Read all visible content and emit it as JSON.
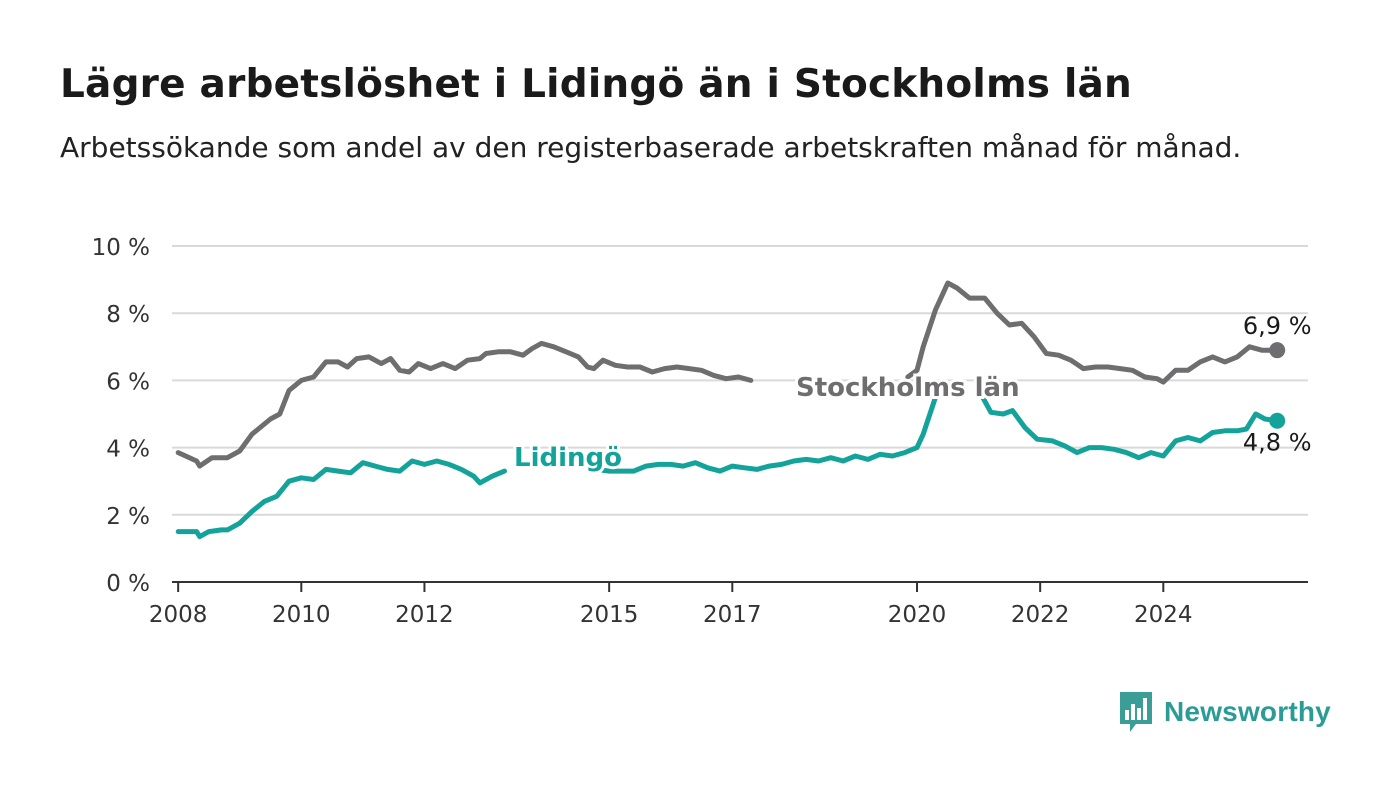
{
  "title": "Lägre arbetslöshet i Lidingö än i Stockholms län",
  "subtitle": "Arbetssökande som andel av den registerbaserade arbetskraften månad för månad.",
  "logo": {
    "text": "Newsworthy",
    "icon": "newsworthy-chart-bubble-icon",
    "color": "#3a9e96"
  },
  "colors": {
    "stockholm": "#6e6e70",
    "lidingo": "#14a39a",
    "grid": "#d9d9d9",
    "axis": "#333333"
  },
  "chart_data": {
    "type": "line",
    "xlabel": "",
    "ylabel": "",
    "ylim": [
      0,
      10
    ],
    "y_ticks": [
      0,
      2,
      4,
      6,
      8,
      10
    ],
    "y_tick_labels": [
      "0 %",
      "2 %",
      "4 %",
      "6 %",
      "8 %",
      "10 %"
    ],
    "x_ticks": [
      2008,
      2010,
      2012,
      2015,
      2017,
      2020,
      2022,
      2024
    ],
    "x_tick_labels": [
      "2008",
      "2010",
      "2012",
      "2015",
      "2017",
      "2020",
      "2022",
      "2024"
    ],
    "grid": "horizontal",
    "legend": "inline labels on lines",
    "series": [
      {
        "name": "Stockholms län",
        "color": "#6e6e70",
        "end_label": "6,9 %",
        "points": [
          [
            2008.0,
            3.85
          ],
          [
            2008.3,
            3.6
          ],
          [
            2008.35,
            3.45
          ],
          [
            2008.55,
            3.7
          ],
          [
            2008.8,
            3.7
          ],
          [
            2009.0,
            3.9
          ],
          [
            2009.2,
            4.4
          ],
          [
            2009.5,
            4.85
          ],
          [
            2009.65,
            5.0
          ],
          [
            2009.8,
            5.7
          ],
          [
            2010.0,
            6.0
          ],
          [
            2010.2,
            6.1
          ],
          [
            2010.4,
            6.55
          ],
          [
            2010.6,
            6.55
          ],
          [
            2010.75,
            6.4
          ],
          [
            2010.9,
            6.65
          ],
          [
            2011.1,
            6.7
          ],
          [
            2011.3,
            6.5
          ],
          [
            2011.45,
            6.65
          ],
          [
            2011.6,
            6.3
          ],
          [
            2011.75,
            6.25
          ],
          [
            2011.9,
            6.5
          ],
          [
            2012.1,
            6.35
          ],
          [
            2012.3,
            6.5
          ],
          [
            2012.5,
            6.35
          ],
          [
            2012.7,
            6.6
          ],
          [
            2012.9,
            6.65
          ],
          [
            2013.0,
            6.8
          ],
          [
            2013.2,
            6.85
          ],
          [
            2013.4,
            6.85
          ],
          [
            2013.6,
            6.75
          ],
          [
            2013.75,
            6.95
          ],
          [
            2013.9,
            7.1
          ],
          [
            2014.1,
            7.0
          ],
          [
            2014.3,
            6.85
          ],
          [
            2014.5,
            6.7
          ],
          [
            2014.65,
            6.4
          ],
          [
            2014.75,
            6.35
          ],
          [
            2014.9,
            6.6
          ],
          [
            2015.1,
            6.45
          ],
          [
            2015.3,
            6.4
          ],
          [
            2015.5,
            6.4
          ],
          [
            2015.7,
            6.25
          ],
          [
            2015.9,
            6.35
          ],
          [
            2016.1,
            6.4
          ],
          [
            2016.3,
            6.35
          ],
          [
            2016.5,
            6.3
          ],
          [
            2016.7,
            6.15
          ],
          [
            2016.9,
            6.05
          ],
          [
            2017.1,
            6.1
          ],
          [
            2017.3,
            6.0
          ]
        ],
        "points_after_label": [
          [
            2019.85,
            6.1
          ],
          [
            2020.0,
            6.3
          ],
          [
            2020.1,
            7.0
          ],
          [
            2020.3,
            8.1
          ],
          [
            2020.5,
            8.9
          ],
          [
            2020.65,
            8.75
          ],
          [
            2020.85,
            8.45
          ],
          [
            2021.1,
            8.45
          ],
          [
            2021.3,
            8.0
          ],
          [
            2021.5,
            7.65
          ],
          [
            2021.7,
            7.7
          ],
          [
            2021.9,
            7.3
          ],
          [
            2022.1,
            6.8
          ],
          [
            2022.3,
            6.75
          ],
          [
            2022.5,
            6.6
          ],
          [
            2022.7,
            6.35
          ],
          [
            2022.9,
            6.4
          ],
          [
            2023.1,
            6.4
          ],
          [
            2023.3,
            6.35
          ],
          [
            2023.5,
            6.3
          ],
          [
            2023.7,
            6.1
          ],
          [
            2023.9,
            6.05
          ],
          [
            2024.0,
            5.95
          ],
          [
            2024.2,
            6.3
          ],
          [
            2024.4,
            6.3
          ],
          [
            2024.6,
            6.55
          ],
          [
            2024.8,
            6.7
          ],
          [
            2025.0,
            6.55
          ],
          [
            2025.2,
            6.7
          ],
          [
            2025.4,
            7.0
          ],
          [
            2025.6,
            6.9
          ],
          [
            2025.85,
            6.9
          ]
        ]
      },
      {
        "name": "Lidingö",
        "color": "#14a39a",
        "end_label": "4,8 %",
        "points": [
          [
            2008.0,
            1.5
          ],
          [
            2008.3,
            1.5
          ],
          [
            2008.35,
            1.35
          ],
          [
            2008.5,
            1.5
          ],
          [
            2008.7,
            1.55
          ],
          [
            2008.8,
            1.55
          ],
          [
            2009.0,
            1.75
          ],
          [
            2009.2,
            2.1
          ],
          [
            2009.4,
            2.4
          ],
          [
            2009.6,
            2.55
          ],
          [
            2009.8,
            3.0
          ],
          [
            2010.0,
            3.1
          ],
          [
            2010.2,
            3.05
          ],
          [
            2010.4,
            3.35
          ],
          [
            2010.6,
            3.3
          ],
          [
            2010.8,
            3.25
          ],
          [
            2011.0,
            3.55
          ],
          [
            2011.2,
            3.45
          ],
          [
            2011.4,
            3.35
          ],
          [
            2011.6,
            3.3
          ],
          [
            2011.8,
            3.6
          ],
          [
            2012.0,
            3.5
          ],
          [
            2012.2,
            3.6
          ],
          [
            2012.4,
            3.5
          ],
          [
            2012.6,
            3.35
          ],
          [
            2012.8,
            3.15
          ],
          [
            2012.9,
            2.95
          ],
          [
            2013.1,
            3.15
          ],
          [
            2013.3,
            3.3
          ]
        ],
        "points_after_label": [
          [
            2014.6,
            3.45
          ],
          [
            2014.8,
            3.35
          ],
          [
            2015.0,
            3.3
          ],
          [
            2015.2,
            3.3
          ],
          [
            2015.4,
            3.3
          ],
          [
            2015.6,
            3.45
          ],
          [
            2015.8,
            3.5
          ],
          [
            2016.0,
            3.5
          ],
          [
            2016.2,
            3.45
          ],
          [
            2016.4,
            3.55
          ],
          [
            2016.6,
            3.4
          ],
          [
            2016.8,
            3.3
          ],
          [
            2017.0,
            3.45
          ],
          [
            2017.2,
            3.4
          ],
          [
            2017.4,
            3.35
          ],
          [
            2017.6,
            3.45
          ],
          [
            2017.8,
            3.5
          ],
          [
            2018.0,
            3.6
          ],
          [
            2018.2,
            3.65
          ],
          [
            2018.4,
            3.6
          ],
          [
            2018.6,
            3.7
          ],
          [
            2018.8,
            3.6
          ],
          [
            2019.0,
            3.75
          ],
          [
            2019.2,
            3.65
          ],
          [
            2019.4,
            3.8
          ],
          [
            2019.6,
            3.75
          ],
          [
            2019.8,
            3.85
          ],
          [
            2020.0,
            4.0
          ],
          [
            2020.1,
            4.4
          ],
          [
            2020.3,
            5.5
          ],
          [
            2020.45,
            5.75
          ]
        ],
        "points_after_label2": [
          [
            2021.05,
            5.55
          ],
          [
            2021.2,
            5.05
          ],
          [
            2021.4,
            5.0
          ],
          [
            2021.55,
            5.1
          ],
          [
            2021.75,
            4.6
          ],
          [
            2021.95,
            4.25
          ],
          [
            2022.2,
            4.2
          ],
          [
            2022.4,
            4.05
          ],
          [
            2022.6,
            3.85
          ],
          [
            2022.8,
            4.0
          ],
          [
            2023.0,
            4.0
          ],
          [
            2023.2,
            3.95
          ],
          [
            2023.4,
            3.85
          ],
          [
            2023.6,
            3.7
          ],
          [
            2023.8,
            3.85
          ],
          [
            2024.0,
            3.75
          ],
          [
            2024.2,
            4.2
          ],
          [
            2024.4,
            4.3
          ],
          [
            2024.6,
            4.2
          ],
          [
            2024.8,
            4.45
          ],
          [
            2025.0,
            4.5
          ],
          [
            2025.2,
            4.5
          ],
          [
            2025.35,
            4.55
          ],
          [
            2025.5,
            5.0
          ],
          [
            2025.65,
            4.85
          ],
          [
            2025.85,
            4.8
          ]
        ]
      }
    ],
    "annotations": [
      {
        "text": "Stockholms län",
        "series": "Stockholms län"
      },
      {
        "text": "Lidingö",
        "series": "Lidingö"
      }
    ]
  }
}
